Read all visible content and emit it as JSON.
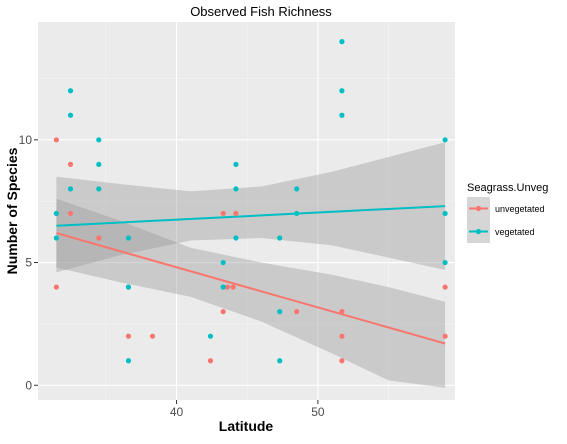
{
  "chart_data": {
    "type": "scatter",
    "title": "Observed Fish Richness",
    "xlabel": "Latitude",
    "ylabel": "Number of Species",
    "xlim": [
      30.2,
      59.7
    ],
    "ylim": [
      -0.6,
      14.8
    ],
    "x_ticks": [
      40,
      50
    ],
    "y_ticks": [
      0,
      5,
      10
    ],
    "x_tick_labels": [
      "40",
      "50"
    ],
    "y_tick_labels": [
      "0",
      "5",
      "10"
    ],
    "grid": true,
    "legend": {
      "title": "Seagrass.Unveg",
      "placement": "right",
      "entries": [
        "unvegetated",
        "vegetated"
      ]
    },
    "colors": {
      "unvegetated": "#F8766D",
      "vegetated": "#00BFC4",
      "panel_bg": "#EBEBEB",
      "band": "#999999"
    },
    "series": [
      {
        "name": "unvegetated",
        "points": [
          [
            31.5,
            10
          ],
          [
            31.5,
            7
          ],
          [
            31.5,
            4
          ],
          [
            32.5,
            9
          ],
          [
            32.5,
            7
          ],
          [
            34.5,
            6
          ],
          [
            36.6,
            2
          ],
          [
            36.6,
            4
          ],
          [
            38.3,
            2
          ],
          [
            42.4,
            1
          ],
          [
            43.3,
            7
          ],
          [
            43.3,
            3
          ],
          [
            43.6,
            4
          ],
          [
            44.0,
            4
          ],
          [
            44.2,
            7
          ],
          [
            48.5,
            3
          ],
          [
            51.7,
            3
          ],
          [
            51.7,
            2
          ],
          [
            51.7,
            1
          ],
          [
            59.0,
            4
          ],
          [
            59.0,
            2
          ]
        ],
        "fit": {
          "start": [
            31.5,
            6.2
          ],
          "end": [
            59.0,
            1.7
          ]
        },
        "band": {
          "x": [
            31.5,
            36.0,
            41.0,
            46.0,
            51.0,
            55.0,
            59.0
          ],
          "lower": [
            4.8,
            4.2,
            3.6,
            2.6,
            1.3,
            0.2,
            -0.1
          ],
          "upper": [
            7.6,
            6.7,
            5.6,
            5.0,
            4.5,
            4.0,
            3.4
          ]
        }
      },
      {
        "name": "vegetated",
        "points": [
          [
            31.5,
            7
          ],
          [
            31.5,
            6
          ],
          [
            32.5,
            12
          ],
          [
            32.5,
            11
          ],
          [
            32.5,
            8
          ],
          [
            34.5,
            10
          ],
          [
            34.5,
            9
          ],
          [
            34.5,
            8
          ],
          [
            36.6,
            6
          ],
          [
            36.6,
            4
          ],
          [
            36.6,
            1
          ],
          [
            42.4,
            2
          ],
          [
            43.3,
            5
          ],
          [
            43.3,
            4
          ],
          [
            44.2,
            9
          ],
          [
            44.2,
            8
          ],
          [
            44.2,
            6
          ],
          [
            47.3,
            6
          ],
          [
            47.3,
            3
          ],
          [
            47.3,
            1
          ],
          [
            48.5,
            8
          ],
          [
            48.5,
            7
          ],
          [
            51.7,
            14
          ],
          [
            51.7,
            12
          ],
          [
            51.7,
            11
          ],
          [
            59.0,
            10
          ],
          [
            59.0,
            7
          ],
          [
            59.0,
            5
          ]
        ],
        "fit": {
          "start": [
            31.5,
            6.5
          ],
          "end": [
            59.0,
            7.3
          ]
        },
        "band": {
          "x": [
            31.5,
            36.0,
            41.0,
            46.0,
            51.0,
            55.0,
            59.0
          ],
          "lower": [
            4.6,
            5.3,
            5.9,
            6.0,
            5.7,
            5.2,
            4.7
          ],
          "upper": [
            8.5,
            8.2,
            7.9,
            8.1,
            8.7,
            9.3,
            9.9
          ]
        }
      }
    ]
  }
}
